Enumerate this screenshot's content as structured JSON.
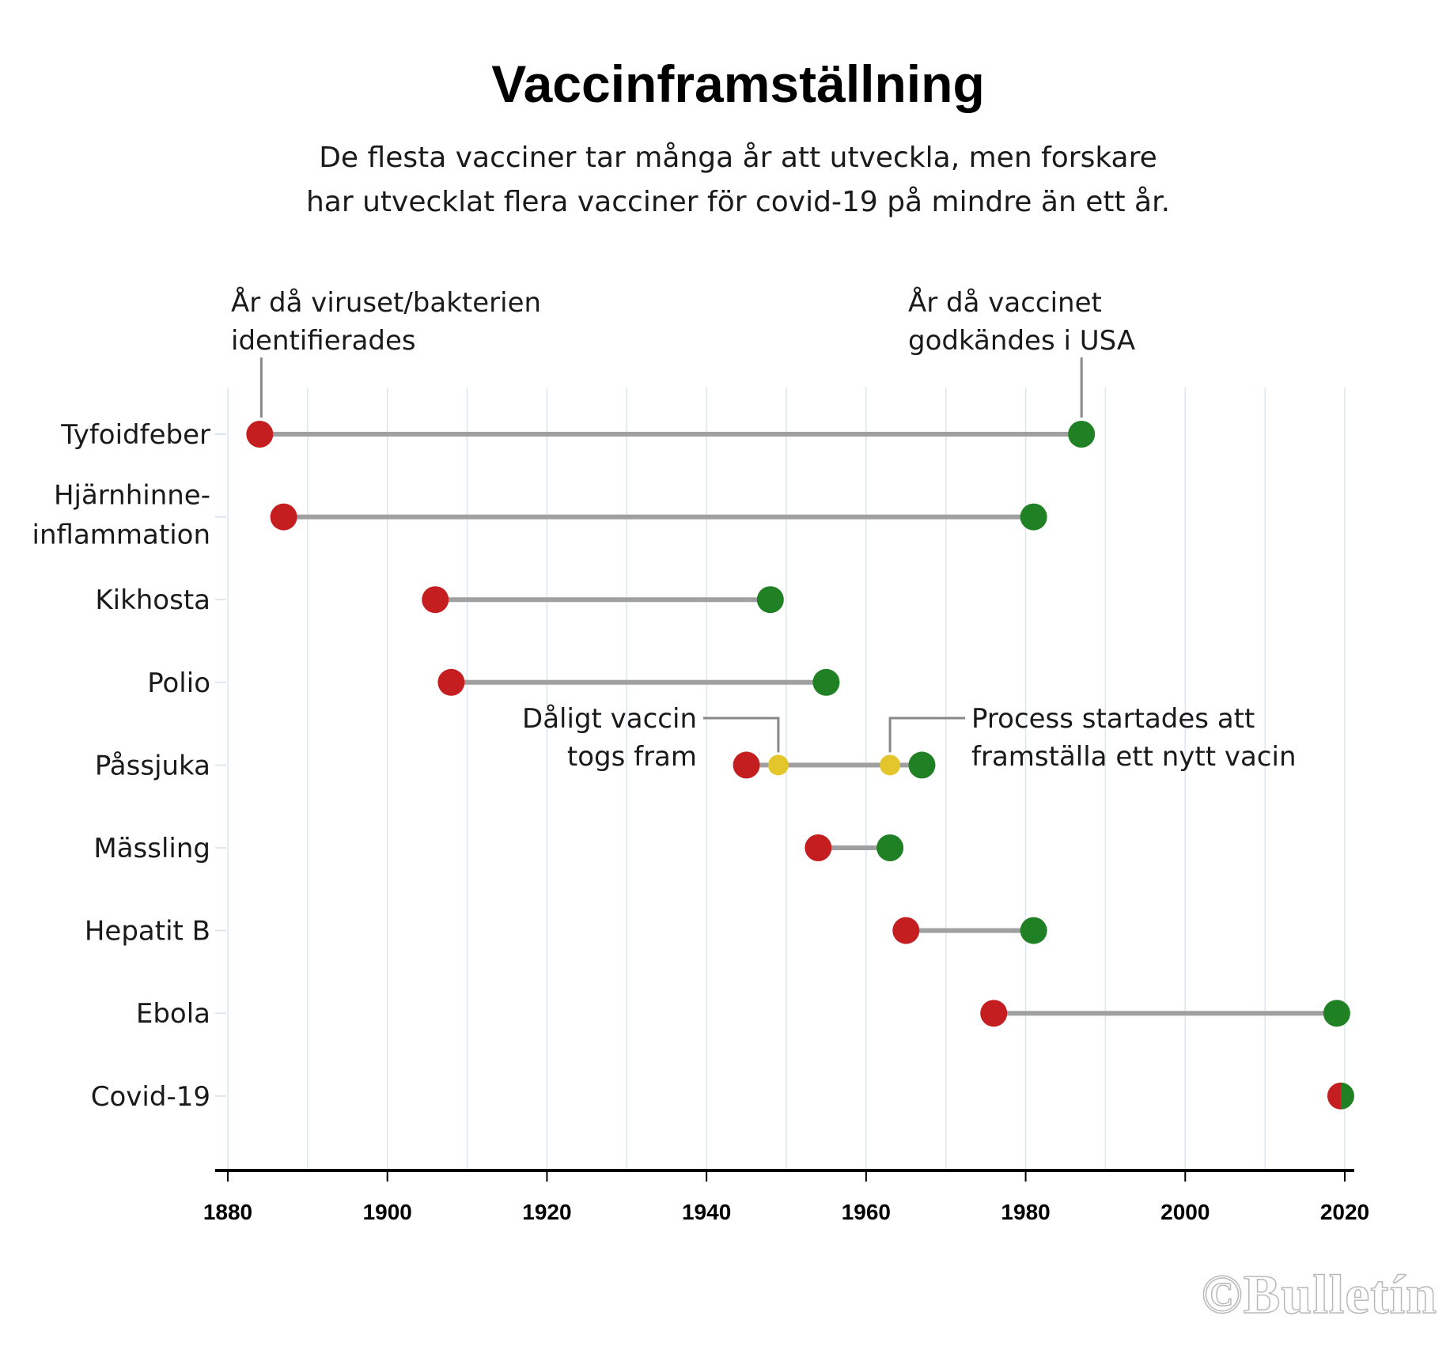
{
  "title": "Vaccinframställning",
  "subtitle": [
    "De flesta vacciner tar många år att utveckla, men forskare",
    "har utvecklat flera vacciner för covid-19 på mindre än ett år."
  ],
  "copyright": "©Bulletín",
  "colors": {
    "identified": "#c41e20",
    "approved": "#1f8024",
    "intermediate": "#e3c52c",
    "range_line": "#a0a0a0",
    "grid": "#dde6ee",
    "axis": "#000000"
  },
  "chart_data": {
    "type": "dumbbell",
    "title": "Vaccinframställning",
    "xlabel": "",
    "ylabel": "",
    "xlim": [
      1880,
      2020
    ],
    "xticks": [
      1880,
      1900,
      1920,
      1940,
      1960,
      1980,
      2000,
      2020
    ],
    "grid": "vertical every 10 years",
    "series_names": {
      "identified": "År då viruset/bakterien identifierades",
      "approved": "År då vaccinet godkändes i USA"
    },
    "rows": [
      {
        "label": [
          "Tyfoidfeber"
        ],
        "identified": 1884,
        "approved": 1987
      },
      {
        "label": [
          "Hjärnhinne-",
          "inflammation"
        ],
        "identified": 1887,
        "approved": 1981
      },
      {
        "label": [
          "Kikhosta"
        ],
        "identified": 1906,
        "approved": 1948
      },
      {
        "label": [
          "Polio"
        ],
        "identified": 1908,
        "approved": 1955
      },
      {
        "label": [
          "Påssjuka"
        ],
        "identified": 1945,
        "approved": 1967,
        "intermediate": [
          1949,
          1963
        ]
      },
      {
        "label": [
          "Mässling"
        ],
        "identified": 1954,
        "approved": 1963
      },
      {
        "label": [
          "Hepatit B"
        ],
        "identified": 1965,
        "approved": 1981
      },
      {
        "label": [
          "Ebola"
        ],
        "identified": 1976,
        "approved": 2019
      },
      {
        "label": [
          "Covid-19"
        ],
        "identified": 2019,
        "approved": 2020
      }
    ],
    "annotations": [
      {
        "target": "Tyfoidfeber.identified",
        "lines": [
          "År då viruset/bakterien",
          "identifierades"
        ]
      },
      {
        "target": "Tyfoidfeber.approved",
        "lines": [
          "År då vaccinet",
          "godkändes i USA"
        ]
      },
      {
        "target": "Påssjuka.intermediate.0",
        "lines": [
          "Dåligt vaccin",
          "togs fram"
        ]
      },
      {
        "target": "Påssjuka.intermediate.1",
        "lines": [
          "Process startades att",
          "framställa ett nytt vacin"
        ]
      }
    ]
  }
}
